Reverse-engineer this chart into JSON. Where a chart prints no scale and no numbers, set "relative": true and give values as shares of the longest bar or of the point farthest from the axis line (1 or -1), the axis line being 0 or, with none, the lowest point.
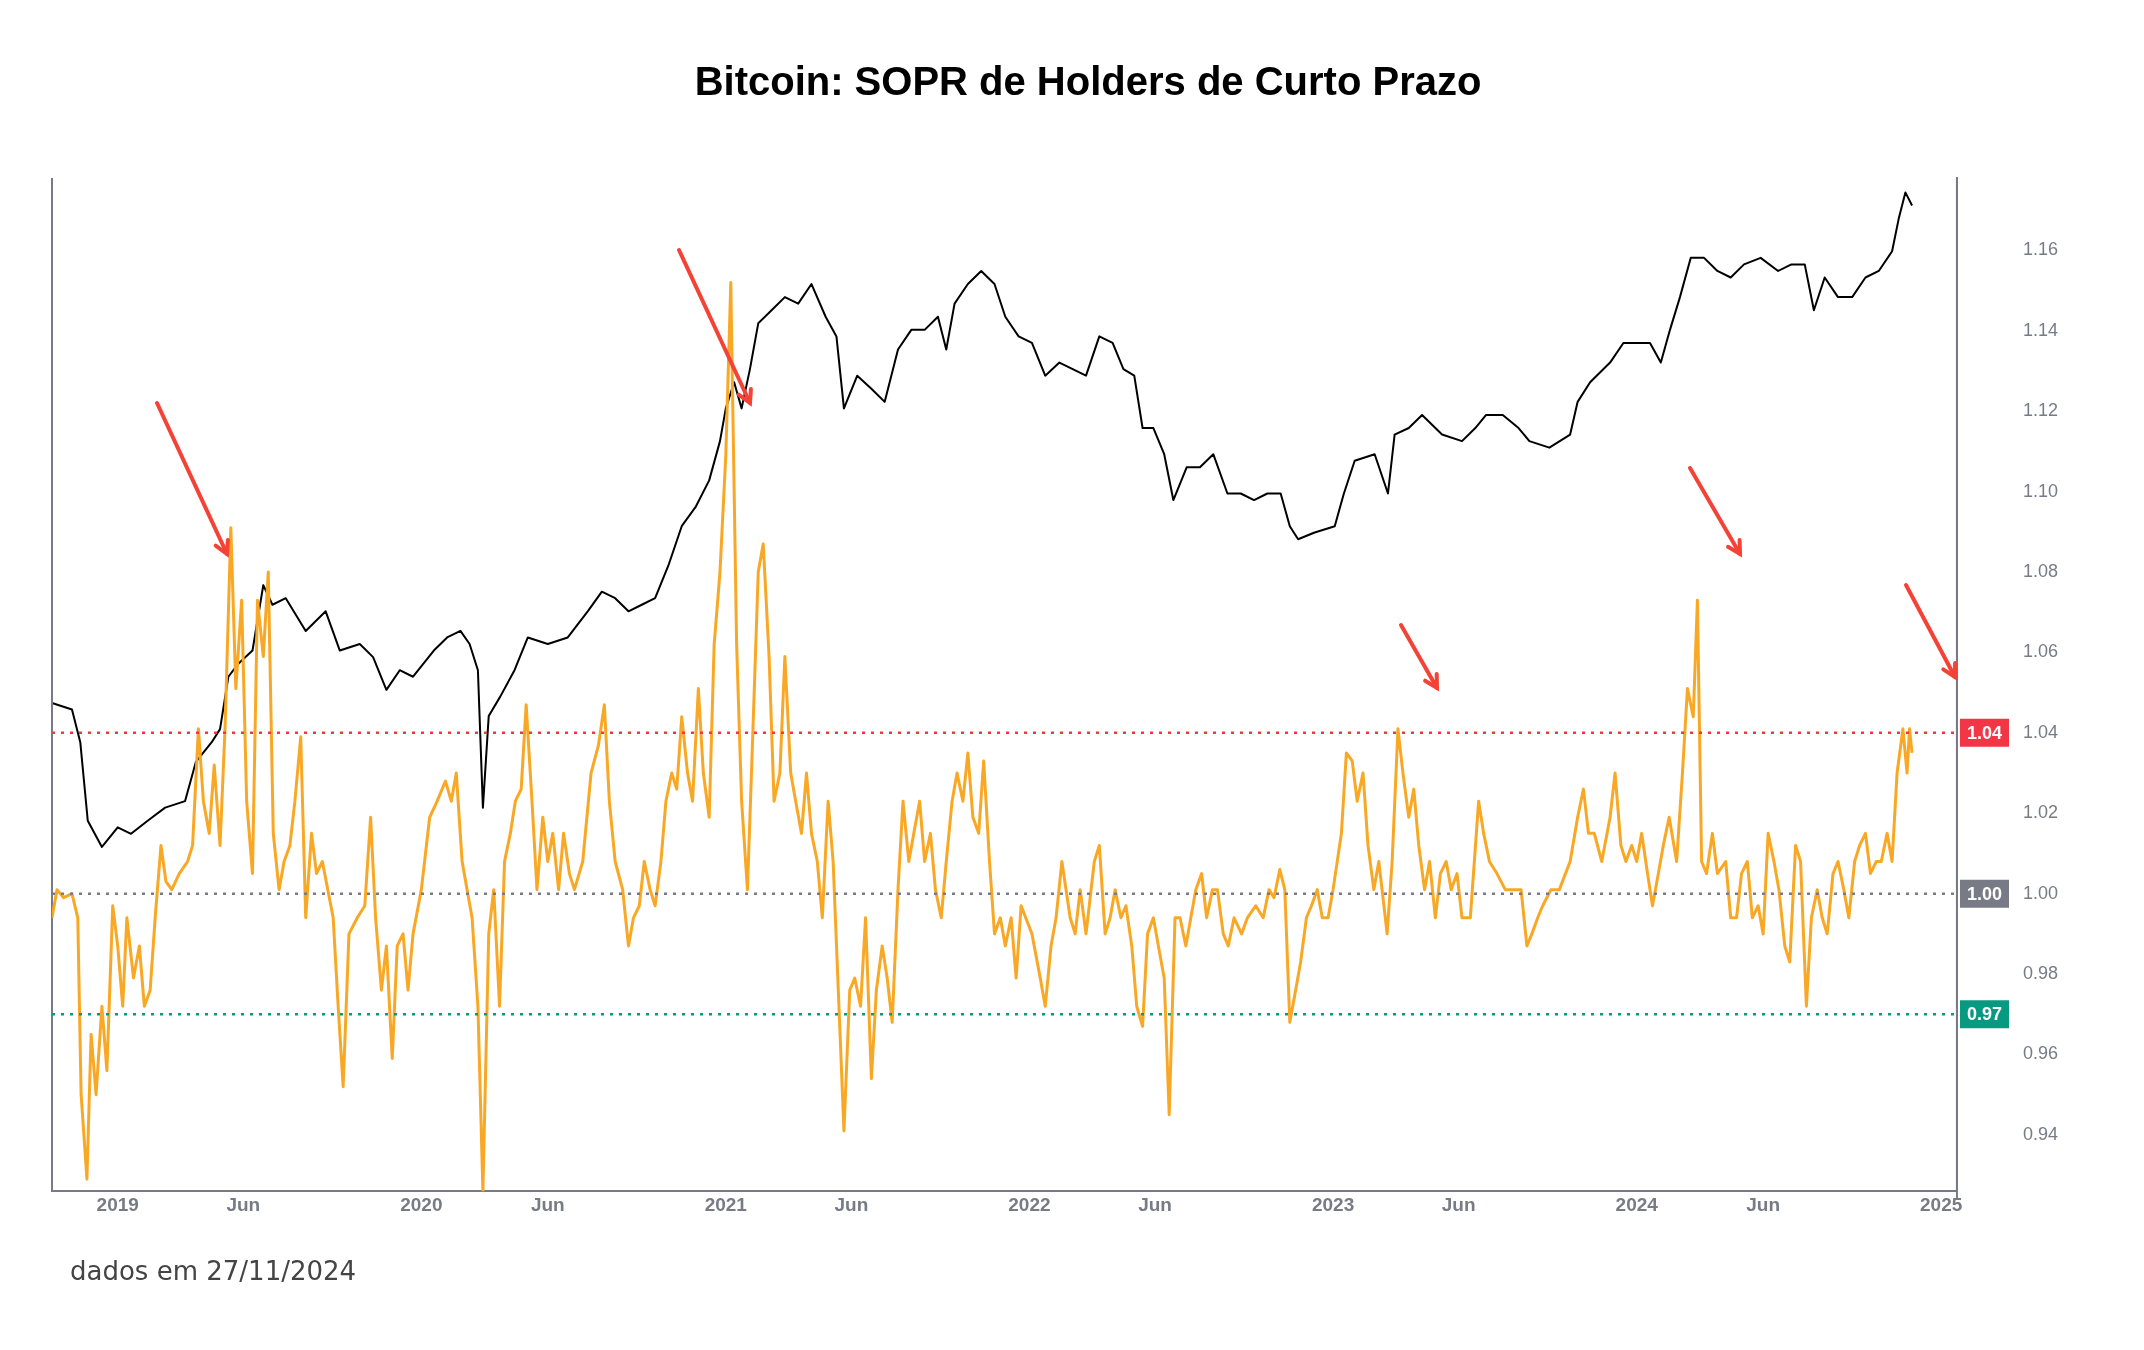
{
  "chart_data": [
    {
      "type": "line",
      "relative": true,
      "xlim": [
        "2018-10-14",
        "2025-01-20"
      ],
      "tick_labels": false,
      "legend": false,
      "marker": "none",
      "line_style": "solid",
      "series": [
        {
          "color": "#000000",
          "x": [
            "2018-10-14",
            "2018-11-07",
            "2018-11-17",
            "2018-11-26",
            "2018-12-13",
            "2019-01-01",
            "2019-01-17",
            "2019-02-06",
            "2019-02-27",
            "2019-03-23",
            "2019-04-05",
            "2019-04-24",
            "2019-05-04",
            "2019-05-14",
            "2019-05-26",
            "2019-06-12",
            "2019-06-25",
            "2019-07-06",
            "2019-07-22",
            "2019-08-15",
            "2019-09-08",
            "2019-09-25",
            "2019-10-19",
            "2019-11-04",
            "2019-11-20",
            "2019-12-06",
            "2019-12-22",
            "2020-01-16",
            "2020-02-01",
            "2020-02-17",
            "2020-02-28",
            "2020-03-09",
            "2020-03-15",
            "2020-03-22",
            "2020-04-05",
            "2020-04-22",
            "2020-05-08",
            "2020-06-01",
            "2020-06-25",
            "2020-07-19",
            "2020-08-05",
            "2020-08-21",
            "2020-09-06",
            "2020-09-22",
            "2020-10-08",
            "2020-10-24",
            "2020-11-09",
            "2020-11-26",
            "2020-12-12",
            "2020-12-25",
            "2021-01-01",
            "2021-01-11",
            "2021-01-20",
            "2021-01-30",
            "2021-02-09",
            "2021-02-25",
            "2021-03-13",
            "2021-03-29",
            "2021-04-14",
            "2021-05-01",
            "2021-05-14",
            "2021-05-23",
            "2021-06-08",
            "2021-06-25",
            "2021-07-11",
            "2021-07-27",
            "2021-08-12",
            "2021-08-28",
            "2021-09-13",
            "2021-09-23",
            "2021-10-03",
            "2021-10-19",
            "2021-11-04",
            "2021-11-20",
            "2021-12-03",
            "2021-12-19",
            "2022-01-04",
            "2022-01-20",
            "2022-02-06",
            "2022-02-22",
            "2022-03-10",
            "2022-03-26",
            "2022-04-11",
            "2022-04-24",
            "2022-05-07",
            "2022-05-17",
            "2022-05-30",
            "2022-06-12",
            "2022-06-23",
            "2022-07-09",
            "2022-07-25",
            "2022-08-10",
            "2022-08-27",
            "2022-09-12",
            "2022-09-28",
            "2022-10-14",
            "2022-10-30",
            "2022-11-10",
            "2022-11-20",
            "2022-12-09",
            "2023-01-03",
            "2023-01-14",
            "2023-01-27",
            "2023-02-20",
            "2023-03-08",
            "2023-03-16",
            "2023-04-02",
            "2023-04-18",
            "2023-05-12",
            "2023-06-05",
            "2023-06-21",
            "2023-07-04",
            "2023-07-24",
            "2023-08-12",
            "2023-08-25",
            "2023-09-18",
            "2023-10-13",
            "2023-10-22",
            "2023-11-06",
            "2023-11-30",
            "2023-12-16",
            "2024-01-01",
            "2024-01-17",
            "2024-01-30",
            "2024-02-10",
            "2024-02-22",
            "2024-03-06",
            "2024-03-22",
            "2024-04-07",
            "2024-04-23",
            "2024-05-09",
            "2024-05-29",
            "2024-06-19",
            "2024-07-05",
            "2024-07-21",
            "2024-08-01",
            "2024-08-14",
            "2024-08-30",
            "2024-09-16",
            "2024-10-02",
            "2024-10-18",
            "2024-11-03",
            "2024-11-11",
            "2024-11-19",
            "2024-11-27"
          ],
          "values": [
            0.22,
            0.21,
            0.16,
            0.04,
            0,
            0.03,
            0.02,
            0.04,
            0.06,
            0.07,
            0.13,
            0.16,
            0.18,
            0.26,
            0.28,
            0.3,
            0.4,
            0.37,
            0.38,
            0.33,
            0.36,
            0.3,
            0.31,
            0.29,
            0.24,
            0.27,
            0.26,
            0.3,
            0.32,
            0.33,
            0.31,
            0.27,
            0.06,
            0.2,
            0.23,
            0.27,
            0.32,
            0.31,
            0.32,
            0.36,
            0.39,
            0.38,
            0.36,
            0.37,
            0.38,
            0.43,
            0.49,
            0.52,
            0.56,
            0.62,
            0.67,
            0.71,
            0.67,
            0.73,
            0.8,
            0.82,
            0.84,
            0.83,
            0.86,
            0.81,
            0.78,
            0.67,
            0.72,
            0.7,
            0.68,
            0.76,
            0.79,
            0.79,
            0.81,
            0.76,
            0.83,
            0.86,
            0.88,
            0.86,
            0.81,
            0.78,
            0.77,
            0.72,
            0.74,
            0.73,
            0.72,
            0.78,
            0.77,
            0.73,
            0.72,
            0.64,
            0.64,
            0.6,
            0.53,
            0.58,
            0.58,
            0.6,
            0.54,
            0.54,
            0.53,
            0.54,
            0.54,
            0.49,
            0.47,
            0.48,
            0.49,
            0.54,
            0.59,
            0.6,
            0.54,
            0.63,
            0.64,
            0.66,
            0.63,
            0.62,
            0.64,
            0.66,
            0.66,
            0.64,
            0.62,
            0.61,
            0.63,
            0.68,
            0.71,
            0.74,
            0.77,
            0.77,
            0.77,
            0.74,
            0.79,
            0.84,
            0.9,
            0.9,
            0.88,
            0.87,
            0.89,
            0.9,
            0.88,
            0.89,
            0.89,
            0.82,
            0.87,
            0.84,
            0.84,
            0.87,
            0.88,
            0.91,
            0.96,
            1,
            0.98
          ]
        }
      ]
    },
    {
      "type": "line",
      "title": "Bitcoin: SOPR de Holders de Curto Prazo",
      "annotations": [
        "dados em 27/11/2024"
      ],
      "xlim": [
        "2018-10-14",
        "2025-01-20"
      ],
      "xticks": [
        {
          "value": "2019-01-01",
          "label": "2019"
        },
        {
          "value": "2019-06-01",
          "label": "Jun"
        },
        {
          "value": "2020-01-01",
          "label": "2020"
        },
        {
          "value": "2020-06-01",
          "label": "Jun"
        },
        {
          "value": "2021-01-01",
          "label": "2021"
        },
        {
          "value": "2021-06-01",
          "label": "Jun"
        },
        {
          "value": "2022-01-01",
          "label": "2022"
        },
        {
          "value": "2022-06-01",
          "label": "Jun"
        },
        {
          "value": "2023-01-01",
          "label": "2023"
        },
        {
          "value": "2023-06-01",
          "label": "Jun"
        },
        {
          "value": "2024-01-01",
          "label": "2024"
        },
        {
          "value": "2024-06-01",
          "label": "Jun"
        },
        {
          "value": "2025-01-01",
          "label": "2025"
        }
      ],
      "ylim": [
        0.926,
        1.178
      ],
      "yticks": [
        0.94,
        0.96,
        0.98,
        {
          "value": 1,
          "label": "1.00"
        },
        1.02,
        1.04,
        1.06,
        1.08,
        {
          "value": 1.1,
          "label": "1.10"
        },
        1.12,
        1.14,
        1.16
      ],
      "grid": false,
      "legend": false,
      "marker": "none",
      "line_style": "solid",
      "ref_lines": [
        {
          "axis": "y",
          "value": 1.04,
          "label": "1.04",
          "color": "#f23645",
          "line_style": "dotted"
        },
        {
          "axis": "y",
          "value": 1.0,
          "label": "1.00",
          "color": "#787b86",
          "line_style": "dotted"
        },
        {
          "axis": "y",
          "value": 0.97,
          "label": "0.97",
          "color": "#089981",
          "line_style": "dotted"
        }
      ],
      "series": [
        {
          "color": "#f9a825",
          "x": [
            "2018-10-14",
            "2018-10-20",
            "2018-10-28",
            "2018-11-07",
            "2018-11-14",
            "2018-11-18",
            "2018-11-25",
            "2018-11-30",
            "2018-12-06",
            "2018-12-13",
            "2018-12-19",
            "2018-12-26",
            "2019-01-01",
            "2019-01-07",
            "2019-01-12",
            "2019-01-20",
            "2019-01-27",
            "2019-02-02",
            "2019-02-09",
            "2019-02-15",
            "2019-02-22",
            "2019-02-28",
            "2019-03-07",
            "2019-03-16",
            "2019-03-26",
            "2019-04-01",
            "2019-04-08",
            "2019-04-14",
            "2019-04-21",
            "2019-04-27",
            "2019-05-04",
            "2019-05-10",
            "2019-05-17",
            "2019-05-23",
            "2019-05-30",
            "2019-06-05",
            "2019-06-12",
            "2019-06-18",
            "2019-06-25",
            "2019-07-01",
            "2019-07-07",
            "2019-07-14",
            "2019-07-20",
            "2019-07-27",
            "2019-08-02",
            "2019-08-09",
            "2019-08-15",
            "2019-08-22",
            "2019-08-28",
            "2019-09-04",
            "2019-09-17",
            "2019-09-23",
            "2019-09-29",
            "2019-10-06",
            "2019-10-16",
            "2019-10-25",
            "2019-11-01",
            "2019-11-07",
            "2019-11-14",
            "2019-11-20",
            "2019-11-27",
            "2019-12-03",
            "2019-12-10",
            "2019-12-16",
            "2019-12-22",
            "2020-01-01",
            "2020-01-11",
            "2020-01-20",
            "2020-01-30",
            "2020-02-06",
            "2020-02-12",
            "2020-02-19",
            "2020-02-25",
            "2020-03-02",
            "2020-03-09",
            "2020-03-15",
            "2020-03-22",
            "2020-03-28",
            "2020-04-04",
            "2020-04-10",
            "2020-04-17",
            "2020-04-23",
            "2020-04-30",
            "2020-05-06",
            "2020-05-13",
            "2020-05-19",
            "2020-05-26",
            "2020-06-01",
            "2020-06-07",
            "2020-06-14",
            "2020-06-20",
            "2020-06-27",
            "2020-07-03",
            "2020-07-13",
            "2020-07-23",
            "2020-08-01",
            "2020-08-08",
            "2020-08-14",
            "2020-08-21",
            "2020-08-30",
            "2020-09-06",
            "2020-09-12",
            "2020-09-19",
            "2020-09-25",
            "2020-10-02",
            "2020-10-08",
            "2020-10-15",
            "2020-10-21",
            "2020-10-28",
            "2020-11-03",
            "2020-11-09",
            "2020-11-16",
            "2020-11-22",
            "2020-11-29",
            "2020-12-05",
            "2020-12-12",
            "2020-12-18",
            "2020-12-25",
            "2021-01-01",
            "2021-01-07",
            "2021-01-14",
            "2021-01-20",
            "2021-01-27",
            "2021-02-02",
            "2021-02-09",
            "2021-02-15",
            "2021-02-22",
            "2021-02-28",
            "2021-03-07",
            "2021-03-13",
            "2021-03-20",
            "2021-03-26",
            "2021-04-02",
            "2021-04-08",
            "2021-04-14",
            "2021-04-21",
            "2021-04-27",
            "2021-05-04",
            "2021-05-10",
            "2021-05-17",
            "2021-05-23",
            "2021-05-30",
            "2021-06-05",
            "2021-06-12",
            "2021-06-18",
            "2021-06-25",
            "2021-07-01",
            "2021-07-08",
            "2021-07-14",
            "2021-07-20",
            "2021-07-27",
            "2021-08-02",
            "2021-08-09",
            "2021-08-15",
            "2021-08-22",
            "2021-08-28",
            "2021-09-04",
            "2021-09-10",
            "2021-09-17",
            "2021-09-23",
            "2021-09-30",
            "2021-10-06",
            "2021-10-13",
            "2021-10-19",
            "2021-10-25",
            "2021-11-01",
            "2021-11-07",
            "2021-11-14",
            "2021-11-20",
            "2021-11-27",
            "2021-12-03",
            "2021-12-10",
            "2021-12-16",
            "2021-12-22",
            "2022-01-04",
            "2022-01-14",
            "2022-01-20",
            "2022-01-27",
            "2022-02-02",
            "2022-02-09",
            "2022-02-19",
            "2022-02-25",
            "2022-03-03",
            "2022-03-10",
            "2022-03-20",
            "2022-03-26",
            "2022-04-02",
            "2022-04-08",
            "2022-04-14",
            "2022-04-21",
            "2022-04-27",
            "2022-05-04",
            "2022-05-10",
            "2022-05-17",
            "2022-05-23",
            "2022-05-30",
            "2022-06-05",
            "2022-06-12",
            "2022-06-18",
            "2022-06-25",
            "2022-07-01",
            "2022-07-08",
            "2022-07-14",
            "2022-07-20",
            "2022-07-27",
            "2022-08-02",
            "2022-08-09",
            "2022-08-15",
            "2022-08-22",
            "2022-08-28",
            "2022-09-04",
            "2022-09-13",
            "2022-09-20",
            "2022-09-30",
            "2022-10-09",
            "2022-10-16",
            "2022-10-22",
            "2022-10-29",
            "2022-11-04",
            "2022-11-10",
            "2022-11-17",
            "2022-11-23",
            "2022-11-30",
            "2022-12-06",
            "2022-12-13",
            "2022-12-19",
            "2022-12-26",
            "2023-01-01",
            "2023-01-11",
            "2023-01-17",
            "2023-01-24",
            "2023-01-30",
            "2023-02-06",
            "2023-02-12",
            "2023-02-19",
            "2023-02-25",
            "2023-03-07",
            "2023-03-13",
            "2023-03-20",
            "2023-03-26",
            "2023-04-02",
            "2023-04-08",
            "2023-04-14",
            "2023-04-21",
            "2023-04-27",
            "2023-05-04",
            "2023-05-10",
            "2023-05-17",
            "2023-05-23",
            "2023-05-30",
            "2023-06-05",
            "2023-06-15",
            "2023-06-25",
            "2023-07-01",
            "2023-07-08",
            "2023-07-17",
            "2023-07-27",
            "2023-08-06",
            "2023-08-15",
            "2023-08-22",
            "2023-08-28",
            "2023-09-04",
            "2023-09-10",
            "2023-09-20",
            "2023-09-30",
            "2023-10-13",
            "2023-10-22",
            "2023-10-29",
            "2023-11-04",
            "2023-11-11",
            "2023-11-20",
            "2023-11-30",
            "2023-12-06",
            "2023-12-13",
            "2023-12-19",
            "2023-12-26",
            "2024-01-01",
            "2024-01-07",
            "2024-01-14",
            "2024-01-20",
            "2024-01-27",
            "2024-02-02",
            "2024-02-09",
            "2024-02-18",
            "2024-02-25",
            "2024-03-02",
            "2024-03-09",
            "2024-03-14",
            "2024-03-19",
            "2024-03-25",
            "2024-04-01",
            "2024-04-07",
            "2024-04-17",
            "2024-04-23",
            "2024-04-30",
            "2024-05-06",
            "2024-05-13",
            "2024-05-19",
            "2024-05-26",
            "2024-06-01",
            "2024-06-07",
            "2024-06-14",
            "2024-06-20",
            "2024-06-27",
            "2024-07-03",
            "2024-07-10",
            "2024-07-16",
            "2024-07-23",
            "2024-07-29",
            "2024-08-05",
            "2024-08-11",
            "2024-08-17",
            "2024-08-24",
            "2024-08-30",
            "2024-09-06",
            "2024-09-12",
            "2024-09-19",
            "2024-09-25",
            "2024-10-02",
            "2024-10-08",
            "2024-10-15",
            "2024-10-21",
            "2024-10-28",
            "2024-11-03",
            "2024-11-09",
            "2024-11-16",
            "2024-11-21",
            "2024-11-24",
            "2024-11-27"
          ],
          "values": [
            0.994,
            1.001,
            0.999,
            1.0,
            0.994,
            0.95,
            0.929,
            0.965,
            0.95,
            0.972,
            0.956,
            0.997,
            0.987,
            0.972,
            0.994,
            0.979,
            0.987,
            0.972,
            0.976,
            0.994,
            1.012,
            1.003,
            1.001,
            1.005,
            1.008,
            1.012,
            1.041,
            1.023,
            1.015,
            1.032,
            1.012,
            1.041,
            1.091,
            1.051,
            1.073,
            1.023,
            1.005,
            1.073,
            1.059,
            1.08,
            1.015,
            1.001,
            1.008,
            1.012,
            1.023,
            1.039,
            0.994,
            1.015,
            1.005,
            1.008,
            0.994,
            0.972,
            0.952,
            0.99,
            0.994,
            0.997,
            1.019,
            0.994,
            0.976,
            0.987,
            0.959,
            0.987,
            0.99,
            0.976,
            0.99,
            1.001,
            1.019,
            1.023,
            1.028,
            1.023,
            1.03,
            1.008,
            1.001,
            0.994,
            0.972,
            0.926,
            0.99,
            1.001,
            0.972,
            1.008,
            1.015,
            1.023,
            1.026,
            1.047,
            1.023,
            1.001,
            1.019,
            1.008,
            1.015,
            1.001,
            1.015,
            1.005,
            1.001,
            1.008,
            1.03,
            1.037,
            1.047,
            1.023,
            1.008,
            1.001,
            0.987,
            0.994,
            0.997,
            1.008,
            1.001,
            0.997,
            1.008,
            1.023,
            1.03,
            1.026,
            1.044,
            1.03,
            1.023,
            1.051,
            1.03,
            1.019,
            1.062,
            1.08,
            1.109,
            1.152,
            1.062,
            1.023,
            1.001,
            1.037,
            1.08,
            1.087,
            1.059,
            1.023,
            1.03,
            1.059,
            1.03,
            1.023,
            1.015,
            1.03,
            1.015,
            1.008,
            0.994,
            1.023,
            1.008,
            0.972,
            0.941,
            0.976,
            0.979,
            0.972,
            0.994,
            0.954,
            0.976,
            0.987,
            0.979,
            0.968,
            1.001,
            1.023,
            1.008,
            1.015,
            1.023,
            1.008,
            1.015,
            1.001,
            0.994,
            1.008,
            1.023,
            1.03,
            1.023,
            1.035,
            1.019,
            1.015,
            1.033,
            1.008,
            0.99,
            0.994,
            0.987,
            0.994,
            0.979,
            0.997,
            0.99,
            0.979,
            0.972,
            0.987,
            0.994,
            1.008,
            0.994,
            0.99,
            1.001,
            0.99,
            1.008,
            1.012,
            0.99,
            0.994,
            1.001,
            0.994,
            0.997,
            0.987,
            0.972,
            0.967,
            0.99,
            0.994,
            0.987,
            0.979,
            0.945,
            0.994,
            0.994,
            0.987,
            0.994,
            1.001,
            1.005,
            0.994,
            1.001,
            1.001,
            0.99,
            0.987,
            0.994,
            0.99,
            0.994,
            0.997,
            0.994,
            1.001,
            0.999,
            1.006,
            1.001,
            0.968,
            0.976,
            0.983,
            0.994,
            0.997,
            1.001,
            0.994,
            0.994,
            1.001,
            1.015,
            1.035,
            1.033,
            1.023,
            1.03,
            1.012,
            1.001,
            1.008,
            0.99,
            1.008,
            1.041,
            1.03,
            1.019,
            1.026,
            1.012,
            1.001,
            1.008,
            0.994,
            1.005,
            1.008,
            1.001,
            1.005,
            0.994,
            0.994,
            1.023,
            1.015,
            1.008,
            1.005,
            1.001,
            1.001,
            1.001,
            0.987,
            0.99,
            0.994,
            0.997,
            1.001,
            1.001,
            1.008,
            1.019,
            1.026,
            1.015,
            1.015,
            1.008,
            1.019,
            1.03,
            1.012,
            1.008,
            1.012,
            1.008,
            1.015,
            1.005,
            0.997,
            1.005,
            1.012,
            1.019,
            1.008,
            1.03,
            1.051,
            1.044,
            1.073,
            1.008,
            1.005,
            1.015,
            1.005,
            1.008,
            0.994,
            0.994,
            1.005,
            1.008,
            0.994,
            0.997,
            0.99,
            1.015,
            1.008,
            1.001,
            0.987,
            0.983,
            1.012,
            1.008,
            0.972,
            0.994,
            1.001,
            0.994,
            0.99,
            1.005,
            1.008,
            1.001,
            0.994,
            1.008,
            1.012,
            1.015,
            1.005,
            1.008,
            1.008,
            1.015,
            1.008,
            1.03,
            1.041,
            1.03,
            1.041,
            1.035
          ]
        }
      ]
    }
  ]
}
